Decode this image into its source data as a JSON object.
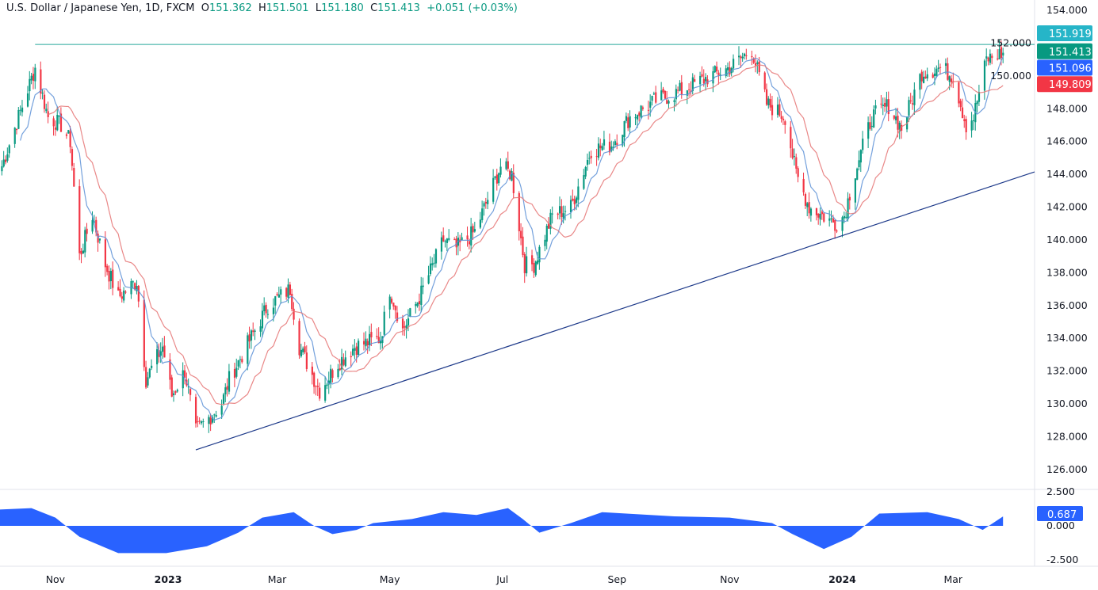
{
  "header": {
    "symbol": "U.S. Dollar / Japanese Yen, 1D, FXCM",
    "o_label": "O",
    "open": "151.362",
    "h_label": "H",
    "high": "151.501",
    "l_label": "L",
    "low": "151.180",
    "c_label": "C",
    "close": "151.413",
    "change": "+0.051 (+0.03%)"
  },
  "chart_data": {
    "type": "candlestick",
    "title": "U.S. Dollar / Japanese Yen, 1D, FXCM",
    "ylim": [
      125,
      155
    ],
    "y_ticks": [
      "154.000",
      "152.000",
      "150.000",
      "148.000",
      "146.000",
      "144.000",
      "142.000",
      "140.000",
      "138.000",
      "136.000",
      "134.000",
      "132.000",
      "130.000",
      "128.000",
      "126.000"
    ],
    "x_ticks": [
      {
        "label": "Nov",
        "date": "2022-11-01"
      },
      {
        "label": "2023",
        "date": "2023-01-01",
        "bold": true
      },
      {
        "label": "Mar",
        "date": "2023-03-01"
      },
      {
        "label": "May",
        "date": "2023-05-01"
      },
      {
        "label": "Jul",
        "date": "2023-07-01"
      },
      {
        "label": "Sep",
        "date": "2023-09-01"
      },
      {
        "label": "Nov",
        "date": "2023-11-01"
      },
      {
        "label": "2024",
        "date": "2024-01-01",
        "bold": true
      },
      {
        "label": "Mar",
        "date": "2024-03-01"
      }
    ],
    "approx_closes": [
      [
        "2022-10-03",
        144.5
      ],
      [
        "2022-10-21",
        150.5
      ],
      [
        "2022-10-28",
        147.5
      ],
      [
        "2022-11-04",
        147
      ],
      [
        "2022-11-09",
        146
      ],
      [
        "2022-11-14",
        139
      ],
      [
        "2022-11-21",
        141.5
      ],
      [
        "2022-11-28",
        138.5
      ],
      [
        "2022-12-05",
        136.5
      ],
      [
        "2022-12-15",
        137.5
      ],
      [
        "2022-12-20",
        131.5
      ],
      [
        "2022-12-29",
        133.5
      ],
      [
        "2023-01-03",
        130.5
      ],
      [
        "2023-01-10",
        132
      ],
      [
        "2023-01-16",
        128.3
      ],
      [
        "2023-01-30",
        130
      ],
      [
        "2023-02-03",
        131.5
      ],
      [
        "2023-02-17",
        134.5
      ],
      [
        "2023-02-24",
        136
      ],
      [
        "2023-03-08",
        137
      ],
      [
        "2023-03-13",
        133.5
      ],
      [
        "2023-03-24",
        130.8
      ],
      [
        "2023-04-03",
        132.5
      ],
      [
        "2023-04-12",
        133.5
      ],
      [
        "2023-04-26",
        134
      ],
      [
        "2023-05-01",
        137
      ],
      [
        "2023-05-08",
        134.5
      ],
      [
        "2023-05-17",
        136.5
      ],
      [
        "2023-05-30",
        140
      ],
      [
        "2023-06-06",
        139.5
      ],
      [
        "2023-06-16",
        140.5
      ],
      [
        "2023-06-30",
        144.5
      ],
      [
        "2023-07-06",
        144
      ],
      [
        "2023-07-13",
        138.5
      ],
      [
        "2023-07-18",
        138.5
      ],
      [
        "2023-07-28",
        141.5
      ],
      [
        "2023-08-07",
        142
      ],
      [
        "2023-08-18",
        145.5
      ],
      [
        "2023-08-29",
        145.8
      ],
      [
        "2023-09-08",
        147.5
      ],
      [
        "2023-09-22",
        148.5
      ],
      [
        "2023-10-04",
        149
      ],
      [
        "2023-10-20",
        149.9
      ],
      [
        "2023-11-01",
        150.5
      ],
      [
        "2023-11-13",
        151.6
      ],
      [
        "2023-11-21",
        148.3
      ],
      [
        "2023-12-01",
        147.5
      ],
      [
        "2023-12-07",
        144
      ],
      [
        "2023-12-14",
        142
      ],
      [
        "2023-12-28",
        141
      ],
      [
        "2024-01-02",
        141.5
      ],
      [
        "2024-01-08",
        144.2
      ],
      [
        "2024-01-17",
        147.5
      ],
      [
        "2024-01-26",
        148.2
      ],
      [
        "2024-02-02",
        146.8
      ],
      [
        "2024-02-13",
        150.2
      ],
      [
        "2024-02-23",
        150.5
      ],
      [
        "2024-03-01",
        150
      ],
      [
        "2024-03-08",
        147
      ],
      [
        "2024-03-12",
        147.5
      ],
      [
        "2024-03-19",
        151
      ],
      [
        "2024-03-28",
        151.413
      ]
    ],
    "moving_averages": [
      {
        "color": "#5b8fd6",
        "last": "151.096"
      },
      {
        "color": "#e57373",
        "last": "149.809"
      }
    ],
    "horizontal_line": {
      "price": 151.919,
      "from": "2022-10-21",
      "color": "#26a69a",
      "label": "151.919"
    },
    "trendline": {
      "points": [
        [
          "2023-01-16",
          127.2
        ],
        [
          "2024-01-02",
          140.3
        ]
      ],
      "color": "#1e3a8a"
    },
    "last_price": {
      "label": "151.413",
      "color": "#089981"
    },
    "oscillator": {
      "ylim": [
        -3.2,
        3.2
      ],
      "y_ticks": [
        "2.500",
        "0.000",
        "-2.500"
      ],
      "last": "0.687",
      "color": "#2962ff",
      "values": [
        [
          "2022-10-02",
          1.2
        ],
        [
          "2022-10-19",
          1.3
        ],
        [
          "2022-11-01",
          0.6
        ],
        [
          "2022-11-14",
          -0.8
        ],
        [
          "2022-12-05",
          -2.0
        ],
        [
          "2022-12-31",
          -2.0
        ],
        [
          "2023-01-22",
          -1.5
        ],
        [
          "2023-02-08",
          -0.5
        ],
        [
          "2023-02-21",
          0.6
        ],
        [
          "2023-03-10",
          1.0
        ],
        [
          "2023-03-21",
          0
        ],
        [
          "2023-03-31",
          -0.6
        ],
        [
          "2023-04-13",
          -0.3
        ],
        [
          "2023-04-22",
          0.2
        ],
        [
          "2023-05-13",
          0.5
        ],
        [
          "2023-05-30",
          1.0
        ],
        [
          "2023-06-17",
          0.8
        ],
        [
          "2023-07-04",
          1.3
        ],
        [
          "2023-07-12",
          0.5
        ],
        [
          "2023-07-21",
          -0.5
        ],
        [
          "2023-08-07",
          0.2
        ],
        [
          "2023-08-24",
          1.0
        ],
        [
          "2023-10-02",
          0.7
        ],
        [
          "2023-11-01",
          0.6
        ],
        [
          "2023-11-24",
          0.2
        ],
        [
          "2023-12-05",
          -0.6
        ],
        [
          "2023-12-22",
          -1.7
        ],
        [
          "2024-01-06",
          -0.8
        ],
        [
          "2024-01-21",
          0.9
        ],
        [
          "2024-02-16",
          1.0
        ],
        [
          "2024-03-04",
          0.5
        ],
        [
          "2024-03-17",
          -0.3
        ],
        [
          "2024-03-28",
          0.687
        ]
      ]
    }
  },
  "colors": {
    "up": "#089981",
    "down": "#f23645",
    "tag_cyan": "#26b5c8",
    "tag_green": "#089981",
    "tag_blue": "#2962ff",
    "tag_red": "#f23645"
  }
}
